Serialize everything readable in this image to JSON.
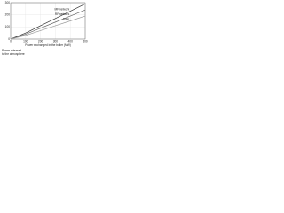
{
  "chart_data": {
    "type": "line",
    "x_label": "Power exchanged in the boiler (MW)",
    "y_label_lines": [
      "Power released",
      "to the atmosphere"
    ],
    "x": [
      0,
      100,
      200,
      300,
      400,
      500
    ],
    "xlim": [
      0,
      500
    ],
    "xticks": [
      0,
      100,
      200,
      300,
      400,
      500
    ],
    "ylim": [
      0,
      300
    ],
    "yticks": [
      0,
      100,
      200,
      300
    ],
    "grid": true,
    "series": [
      {
        "name": "MF network",
        "color": "#333333",
        "values": [
          0,
          50,
          110,
          170,
          230,
          290
        ]
      },
      {
        "name": "RF network",
        "color": "#666666",
        "values": [
          0,
          40,
          90,
          140,
          190,
          240
        ]
      },
      {
        "name": "Solar",
        "color": "#999999",
        "values": [
          0,
          30,
          70,
          110,
          150,
          190
        ]
      }
    ]
  }
}
